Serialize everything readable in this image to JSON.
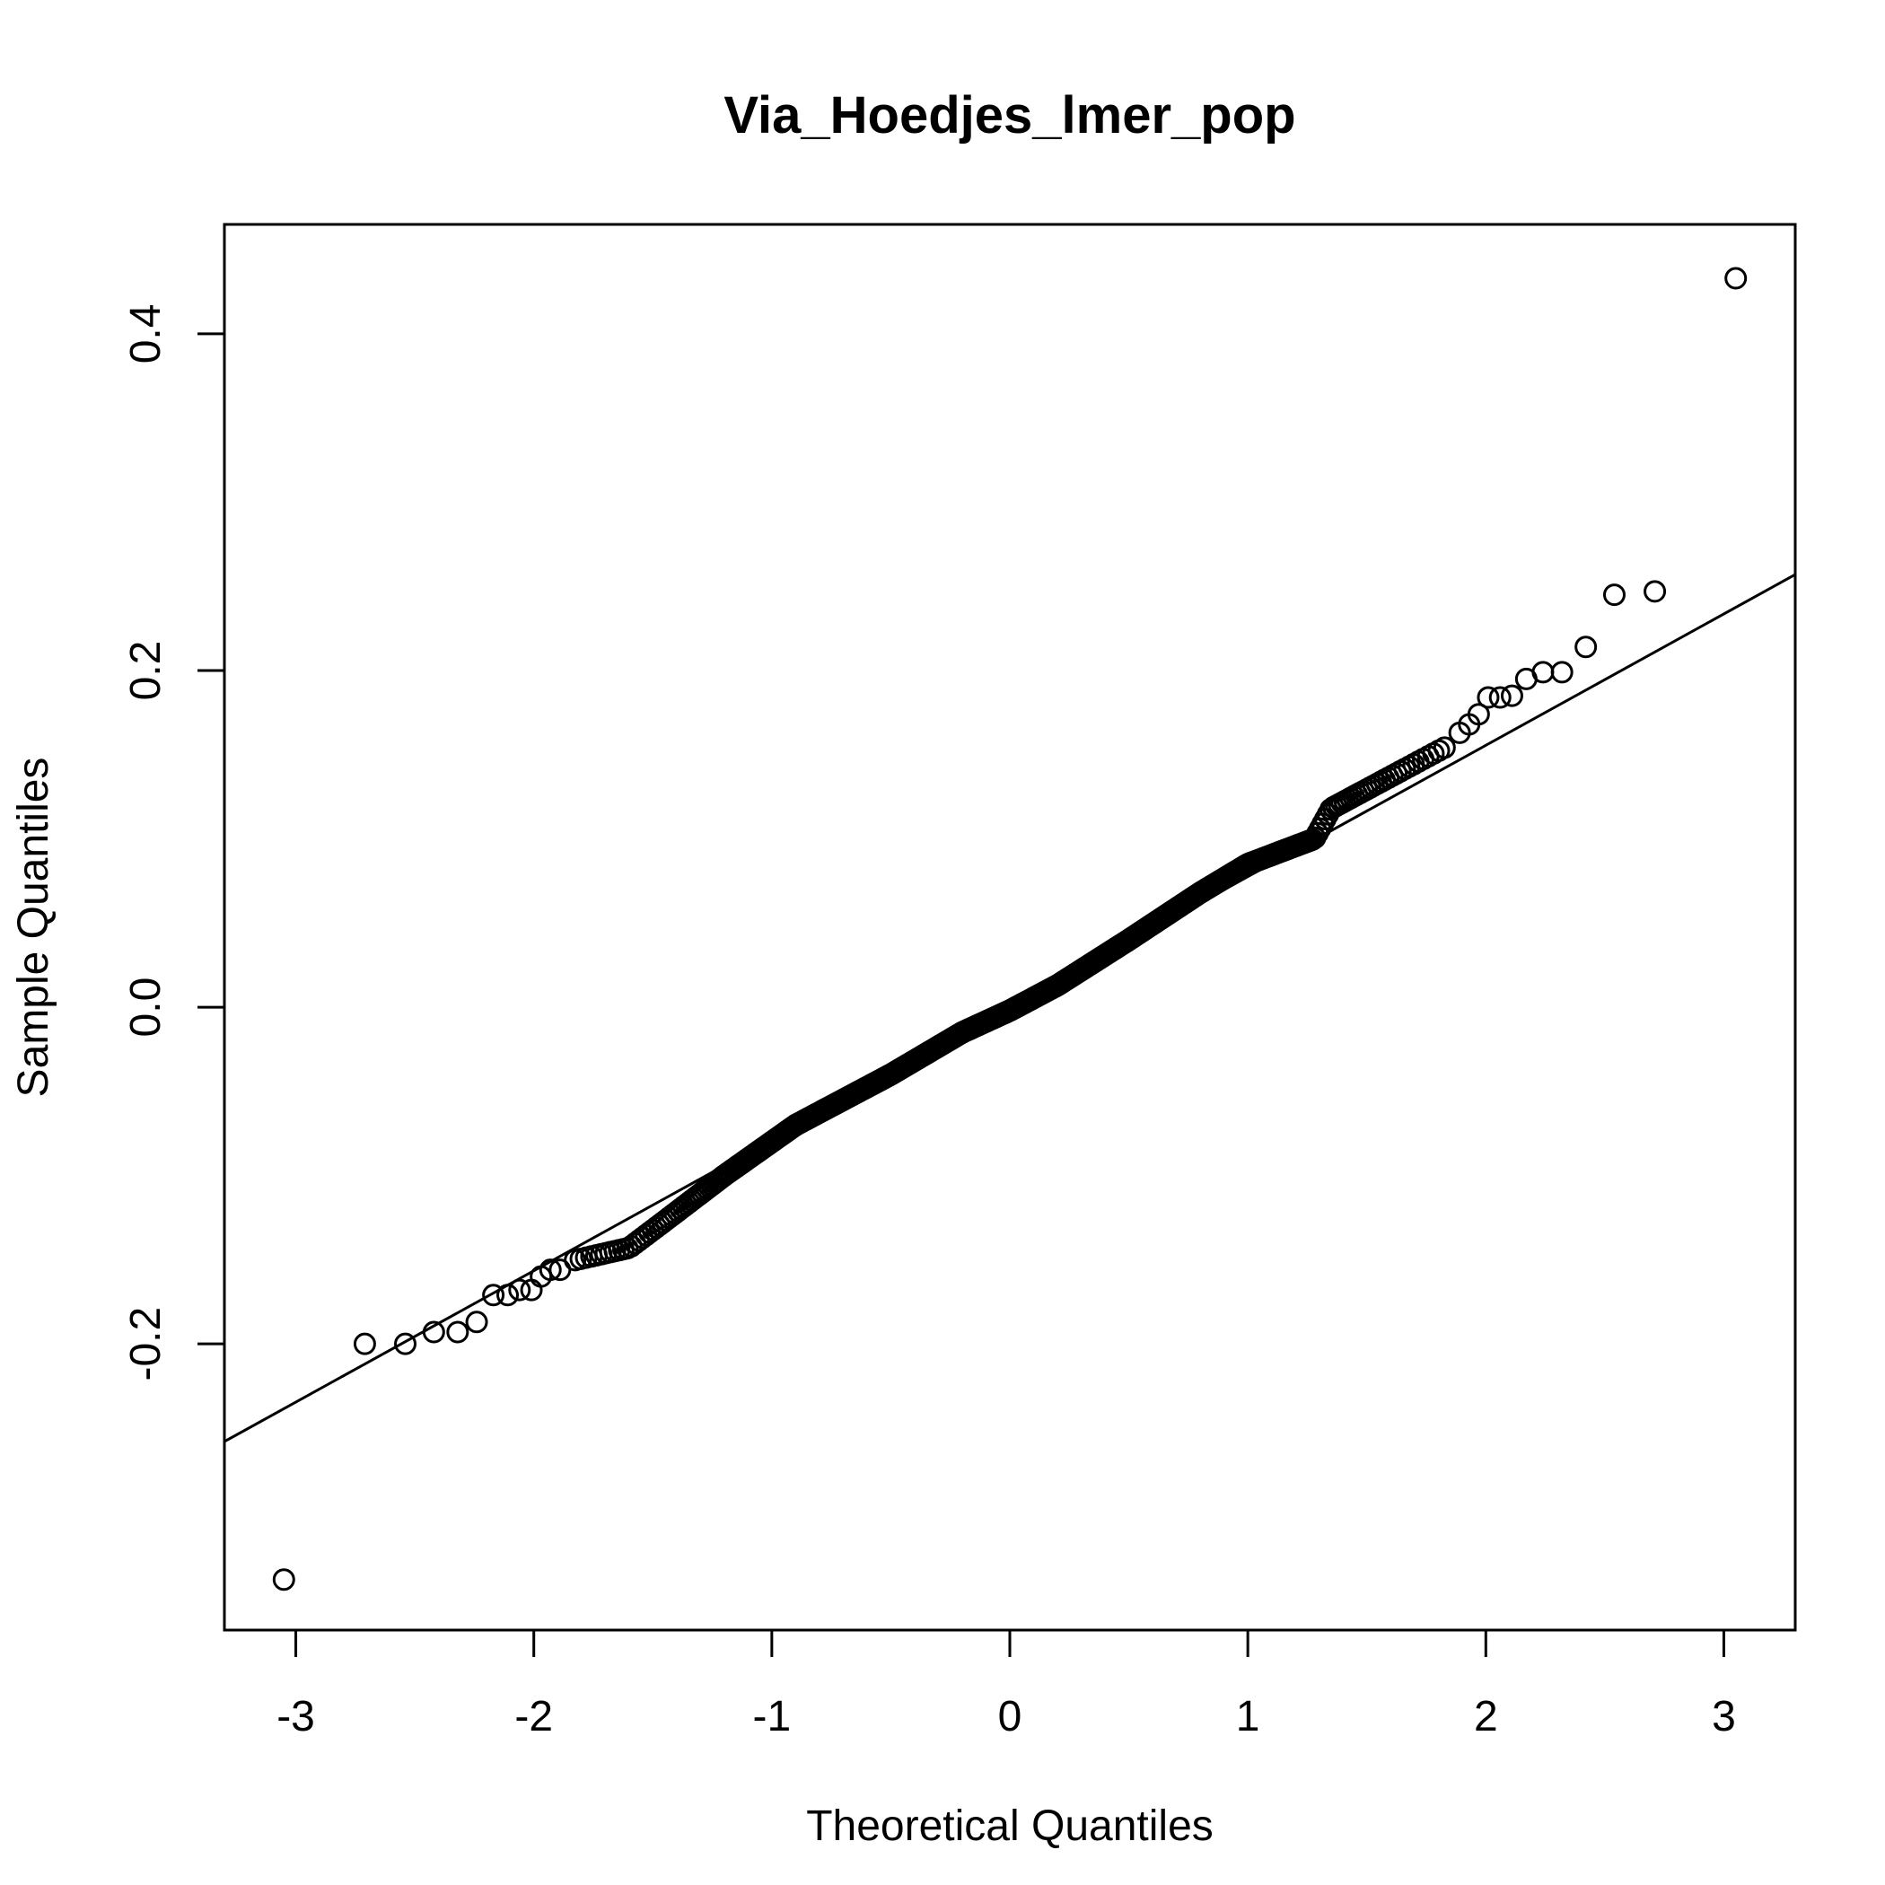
{
  "chart_data": {
    "type": "scatter",
    "subtype": "normal-qq-plot",
    "title": "Via_Hoedjes_lmer_pop",
    "xlabel": "Theoretical Quantiles",
    "ylabel": "Sample Quantiles",
    "xlim": [
      -3.3,
      3.3
    ],
    "ylim": [
      -0.37,
      0.465
    ],
    "x_ticks": [
      -3,
      -2,
      -1,
      0,
      1,
      2,
      3
    ],
    "x_tick_labels": [
      "-3",
      "-2",
      "-1",
      "0",
      "1",
      "2",
      "3"
    ],
    "y_ticks": [
      -0.2,
      0.0,
      0.2,
      0.4
    ],
    "y_tick_labels": [
      "-0.2",
      "0.0",
      "0.2",
      "0.4"
    ],
    "grid": false,
    "legend": "none",
    "colors": {
      "points": "#000000",
      "line": "#000000",
      "background": "#ffffff"
    },
    "reference_line": {
      "slope": 0.0935,
      "intercept": 0.0,
      "through": [
        [
          -3.3,
          -0.258
        ],
        [
          3.3,
          0.257
        ]
      ]
    },
    "outliers": [
      {
        "x": -3.05,
        "y": -0.34
      },
      {
        "x": -2.71,
        "y": -0.2
      },
      {
        "x": -2.54,
        "y": -0.2
      },
      {
        "x": -2.42,
        "y": -0.193
      },
      {
        "x": -2.32,
        "y": -0.193
      },
      {
        "x": -2.24,
        "y": -0.187
      },
      {
        "x": -2.17,
        "y": -0.171
      },
      {
        "x": -2.11,
        "y": -0.171
      },
      {
        "x": -2.06,
        "y": -0.168
      },
      {
        "x": -2.01,
        "y": -0.168
      },
      {
        "x": -1.97,
        "y": -0.16
      },
      {
        "x": -1.93,
        "y": -0.156
      },
      {
        "x": -1.89,
        "y": -0.156
      },
      {
        "x": 1.89,
        "y": 0.163
      },
      {
        "x": 1.93,
        "y": 0.168
      },
      {
        "x": 1.97,
        "y": 0.174
      },
      {
        "x": 2.01,
        "y": 0.184
      },
      {
        "x": 2.06,
        "y": 0.184
      },
      {
        "x": 2.11,
        "y": 0.185
      },
      {
        "x": 2.17,
        "y": 0.195
      },
      {
        "x": 2.24,
        "y": 0.199
      },
      {
        "x": 2.32,
        "y": 0.199
      },
      {
        "x": 2.42,
        "y": 0.214
      },
      {
        "x": 2.54,
        "y": 0.245
      },
      {
        "x": 2.71,
        "y": 0.247
      },
      {
        "x": 3.05,
        "y": 0.433
      }
    ],
    "bulk_profile": {
      "description_points_x": [
        -1.85,
        -1.6,
        -1.45,
        -1.2,
        -0.9,
        -0.5,
        -0.2,
        0.0,
        0.2,
        0.5,
        0.8,
        1.0,
        1.28,
        1.35,
        1.6,
        1.85
      ],
      "description_points_y": [
        -0.151,
        -0.143,
        -0.127,
        -0.1,
        -0.07,
        -0.04,
        -0.015,
        -0.002,
        0.013,
        0.04,
        0.068,
        0.085,
        0.1,
        0.118,
        0.137,
        0.156
      ],
      "n_points": 520
    }
  }
}
